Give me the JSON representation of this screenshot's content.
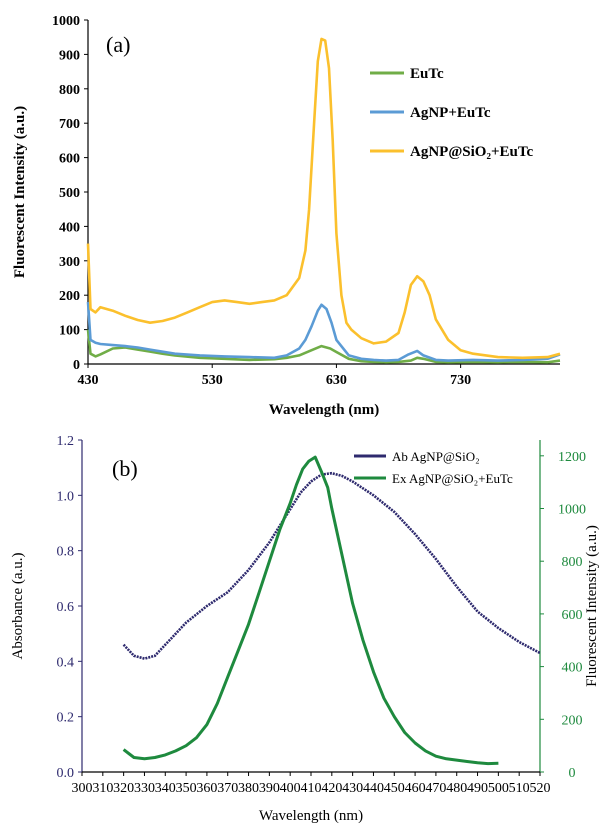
{
  "chart_data": [
    {
      "type": "line",
      "panel_label": "(a)",
      "xlabel": "Wavelength  (nm)",
      "ylabel": "Fluorescent Intensity (a.u.)",
      "xlim": [
        430,
        810
      ],
      "ylim": [
        0,
        1000
      ],
      "x_ticks": [
        430,
        530,
        630,
        730
      ],
      "y_ticks": [
        0,
        100,
        200,
        300,
        400,
        500,
        600,
        700,
        800,
        900,
        1000
      ],
      "legend_position": "top-right",
      "series": [
        {
          "name": "EuTc",
          "color": "#70ad47",
          "x": [
            430,
            432,
            436,
            440,
            450,
            460,
            470,
            480,
            490,
            500,
            520,
            540,
            560,
            580,
            590,
            600,
            610,
            618,
            625,
            630,
            640,
            650,
            660,
            670,
            680,
            690,
            695,
            700,
            710,
            720,
            740,
            760,
            780,
            800,
            810
          ],
          "y": [
            100,
            30,
            22,
            28,
            45,
            48,
            42,
            36,
            30,
            25,
            18,
            15,
            12,
            14,
            18,
            25,
            40,
            52,
            45,
            35,
            15,
            8,
            6,
            5,
            6,
            10,
            18,
            15,
            6,
            5,
            6,
            5,
            6,
            5,
            10
          ]
        },
        {
          "name": "AgNP+EuTc",
          "color": "#5b9bd5",
          "x": [
            430,
            432,
            436,
            440,
            450,
            460,
            470,
            480,
            500,
            520,
            540,
            560,
            580,
            590,
            600,
            605,
            610,
            615,
            618,
            622,
            626,
            630,
            640,
            650,
            660,
            670,
            680,
            688,
            695,
            700,
            710,
            720,
            740,
            760,
            780,
            800,
            810
          ],
          "y": [
            180,
            70,
            62,
            58,
            55,
            52,
            48,
            42,
            30,
            25,
            22,
            20,
            18,
            25,
            45,
            70,
            110,
            155,
            172,
            160,
            120,
            70,
            25,
            15,
            12,
            10,
            12,
            28,
            38,
            25,
            12,
            10,
            12,
            10,
            12,
            15,
            28
          ]
        },
        {
          "name": "AgNP@SiO₂+EuTc",
          "color": "#fbc02d",
          "x": [
            430,
            432,
            436,
            440,
            450,
            460,
            470,
            480,
            490,
            500,
            510,
            520,
            530,
            540,
            550,
            560,
            570,
            580,
            590,
            600,
            605,
            608,
            612,
            615,
            618,
            621,
            624,
            627,
            630,
            634,
            638,
            642,
            650,
            660,
            670,
            680,
            685,
            690,
            695,
            700,
            705,
            710,
            720,
            730,
            740,
            760,
            780,
            800,
            810
          ],
          "y": [
            350,
            160,
            150,
            165,
            155,
            140,
            128,
            120,
            125,
            135,
            150,
            165,
            180,
            185,
            180,
            175,
            180,
            185,
            200,
            250,
            330,
            450,
            700,
            880,
            945,
            940,
            860,
            650,
            380,
            200,
            120,
            100,
            75,
            60,
            65,
            90,
            150,
            230,
            255,
            240,
            200,
            130,
            70,
            40,
            30,
            20,
            18,
            20,
            30
          ]
        }
      ]
    },
    {
      "type": "line",
      "panel_label": "(b)",
      "xlabel": "Wavelength (nm)",
      "ylabel": "Absorbance (a.u.)",
      "y2label": "Fluorescent Intensity (a.u.)",
      "xlim": [
        300,
        520
      ],
      "ylim": [
        0,
        1.2
      ],
      "y2lim": [
        0,
        1260
      ],
      "x_ticks": [
        300,
        310,
        320,
        330,
        340,
        350,
        360,
        370,
        380,
        390,
        400,
        410,
        420,
        430,
        440,
        450,
        460,
        470,
        480,
        490,
        500,
        510,
        520
      ],
      "y_ticks": [
        "0.0",
        "0.2",
        "0.4",
        "0.6",
        "0.8",
        "1.0",
        "1.2"
      ],
      "y2_ticks": [
        0,
        200,
        400,
        600,
        800,
        1000,
        1200
      ],
      "legend_position": "top-right",
      "series": [
        {
          "name": "Ab AgNP@SiO₂",
          "color": "#2e2a6e",
          "axis": "left",
          "x": [
            320,
            325,
            330,
            335,
            340,
            345,
            350,
            360,
            370,
            380,
            390,
            400,
            405,
            410,
            415,
            420,
            425,
            430,
            440,
            450,
            460,
            470,
            480,
            490,
            500,
            510,
            520
          ],
          "y": [
            0.46,
            0.42,
            0.41,
            0.42,
            0.46,
            0.5,
            0.54,
            0.6,
            0.65,
            0.73,
            0.83,
            0.95,
            1.01,
            1.05,
            1.075,
            1.08,
            1.07,
            1.05,
            1.0,
            0.94,
            0.86,
            0.77,
            0.67,
            0.58,
            0.52,
            0.47,
            0.43
          ]
        },
        {
          "name": "Ex AgNP@SiO₂+EuTc",
          "color": "#1e8a3e",
          "axis": "right",
          "x": [
            320,
            325,
            330,
            335,
            340,
            345,
            350,
            355,
            360,
            365,
            370,
            375,
            380,
            385,
            390,
            395,
            400,
            403,
            406,
            409,
            412,
            415,
            418,
            420,
            425,
            430,
            435,
            440,
            445,
            450,
            455,
            460,
            465,
            470,
            475,
            480,
            485,
            490,
            495,
            500
          ],
          "y": [
            85,
            55,
            50,
            55,
            65,
            80,
            100,
            130,
            180,
            260,
            360,
            460,
            560,
            680,
            800,
            920,
            1020,
            1090,
            1150,
            1180,
            1195,
            1140,
            1080,
            1000,
            820,
            640,
            500,
            380,
            280,
            210,
            150,
            110,
            80,
            60,
            50,
            45,
            40,
            35,
            32,
            33
          ]
        }
      ]
    }
  ]
}
